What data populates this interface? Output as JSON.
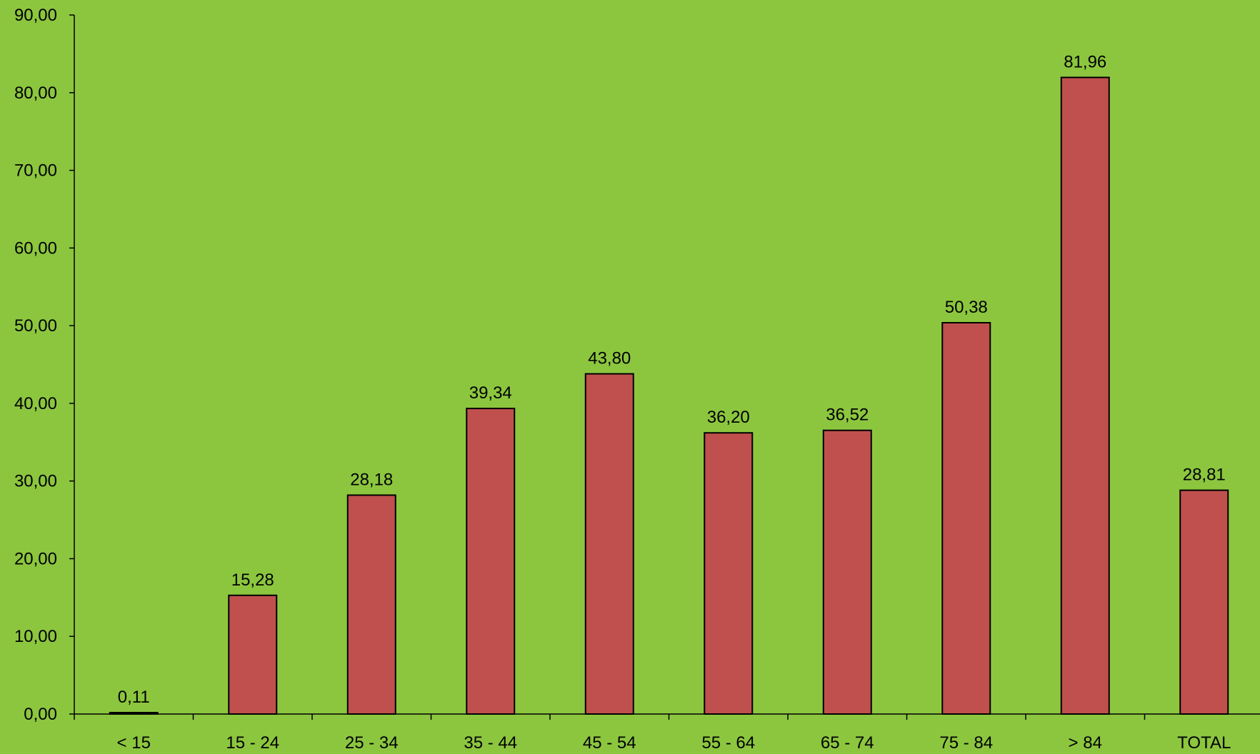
{
  "chart_data": {
    "type": "bar",
    "categories": [
      "< 15",
      "15 - 24",
      "25 - 34",
      "35 - 44",
      "45 - 54",
      "55 - 64",
      "65 - 74",
      "75 - 84",
      "> 84",
      "TOTAL"
    ],
    "values": [
      0.11,
      15.28,
      28.18,
      39.34,
      43.8,
      36.2,
      36.52,
      50.38,
      81.96,
      28.81
    ],
    "value_labels": [
      "0,11",
      "15,28",
      "28,18",
      "39,34",
      "43,80",
      "36,20",
      "36,52",
      "50,38",
      "81,96",
      "28,81"
    ],
    "yticks": [
      0,
      10,
      20,
      30,
      40,
      50,
      60,
      70,
      80,
      90
    ],
    "ytick_labels": [
      "0,00",
      "10,00",
      "20,00",
      "30,00",
      "40,00",
      "50,00",
      "60,00",
      "70,00",
      "80,00",
      "90,00"
    ],
    "ylim": [
      0,
      90
    ],
    "title": "",
    "xlabel": "",
    "ylabel": "",
    "grid": false,
    "legend": "none",
    "colors": {
      "background": "#8cc63f",
      "bar_fill": "#c0504d",
      "bar_stroke": "#000000",
      "axis": "#000000"
    }
  }
}
